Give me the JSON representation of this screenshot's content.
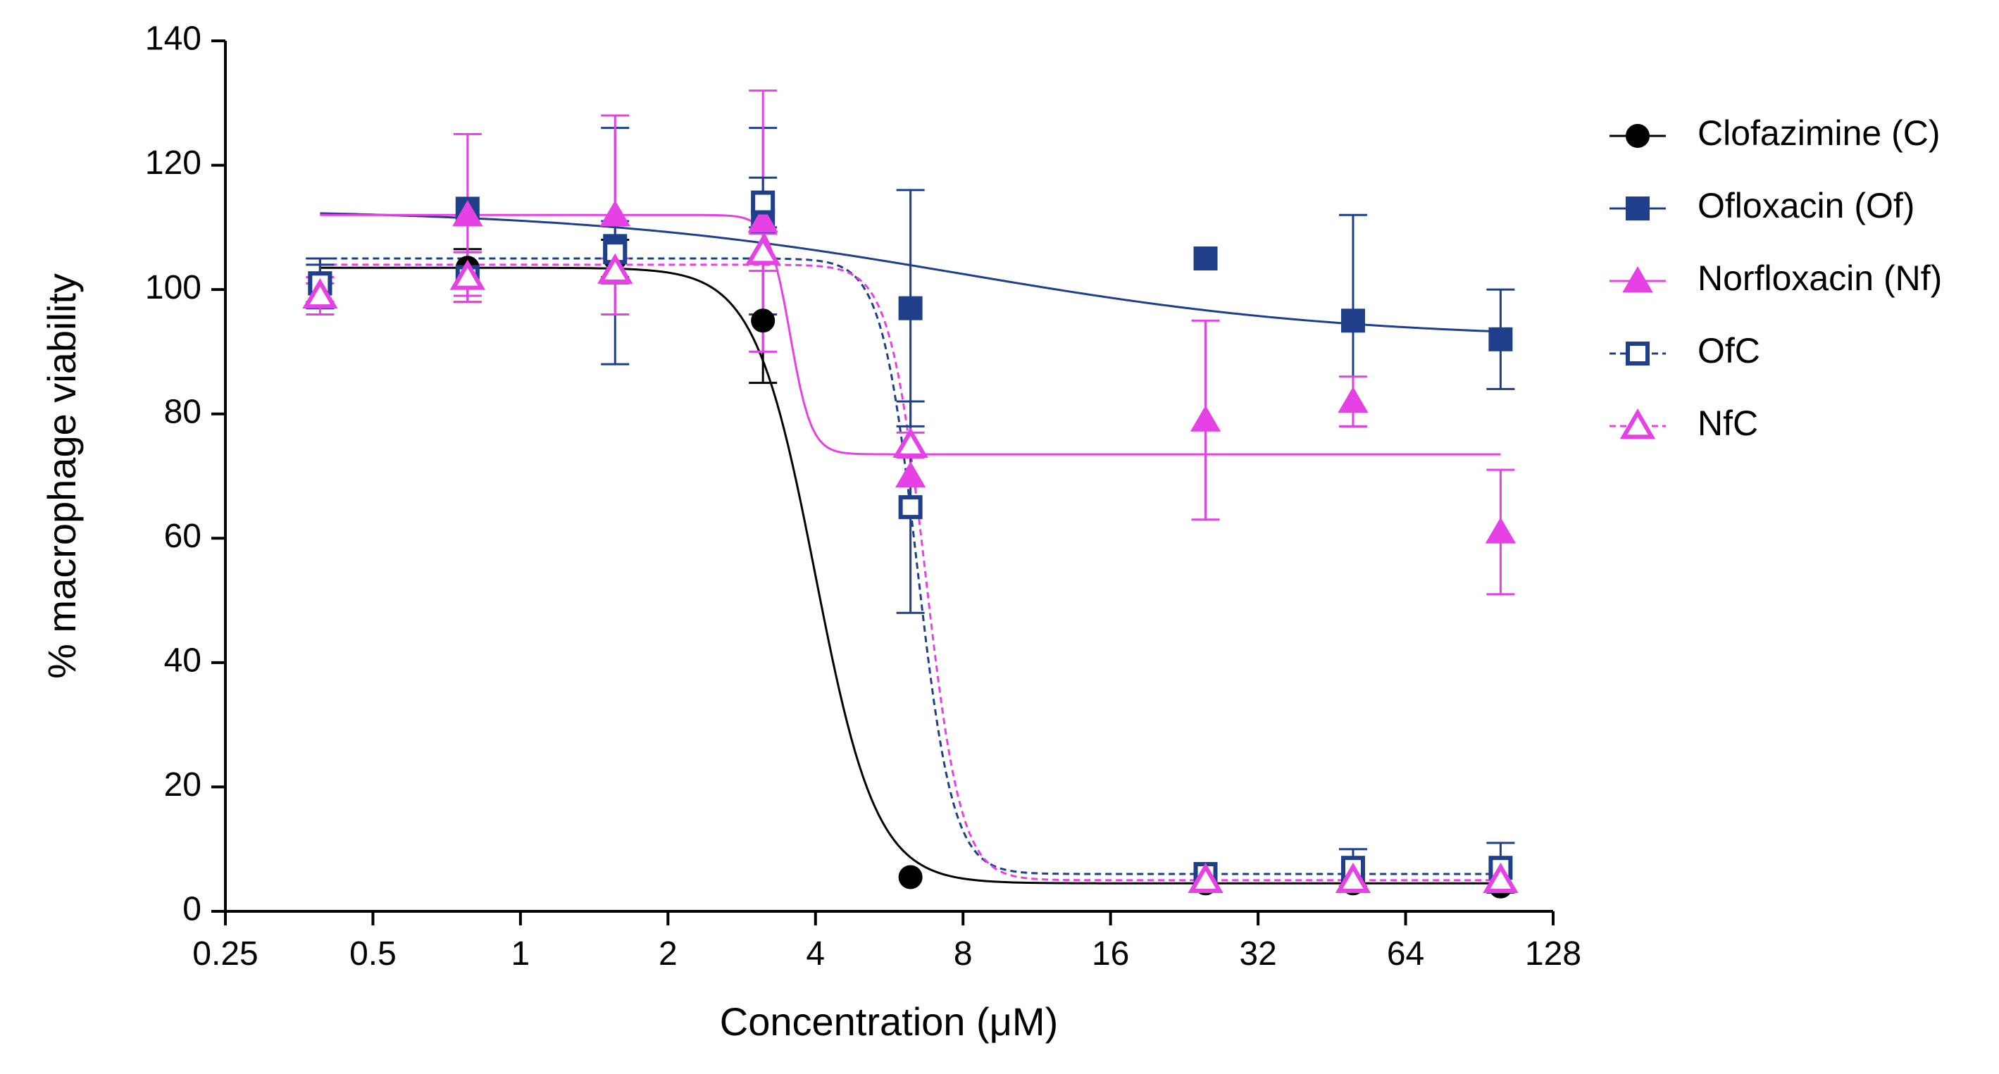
{
  "chart_data": {
    "type": "scatter",
    "xlabel": "Concentration (μM)",
    "ylabel": "% macrophage viability",
    "xscale": "log2",
    "xlim": [
      0.25,
      128
    ],
    "ylim": [
      0,
      140
    ],
    "x_ticks": [
      0.25,
      0.5,
      1,
      2,
      4,
      8,
      16,
      32,
      64,
      128
    ],
    "x_tick_labels": [
      "0.25",
      "0.5",
      "1",
      "2",
      "4",
      "8",
      "16",
      "32",
      "64",
      "128"
    ],
    "y_ticks": [
      0,
      20,
      40,
      60,
      80,
      100,
      120,
      140
    ],
    "y_tick_labels": [
      "0",
      "20",
      "40",
      "60",
      "80",
      "100",
      "120",
      "140"
    ],
    "grid": false,
    "legend_position": "right",
    "series": [
      {
        "name": "Clofazimine (C)",
        "color": "#000000",
        "marker": "circle",
        "filled": true,
        "line_style": "solid",
        "x": [
          0.39,
          0.78,
          1.56,
          3.125,
          6.25,
          25,
          50,
          100
        ],
        "y": [
          101,
          103.5,
          105,
          95,
          5.5,
          4.5,
          4.5,
          4
        ],
        "err": [
          4,
          3,
          3,
          10,
          0,
          0,
          0,
          0
        ],
        "fit": {
          "top": 103.5,
          "bottom": 4.5,
          "ec50": 4.0,
          "hill": 7
        }
      },
      {
        "name": "Ofloxacin (Of)",
        "color": "#1f3f8a",
        "marker": "square",
        "filled": true,
        "line_style": "solid",
        "x": [
          0.39,
          0.78,
          1.56,
          3.125,
          6.25,
          25,
          50,
          100
        ],
        "y": [
          101,
          113,
          107,
          111,
          97,
          105,
          95,
          92
        ],
        "err": [
          3,
          0,
          19,
          15,
          19,
          0,
          17,
          8
        ],
        "fit": {
          "top": 113,
          "bottom": 92,
          "ec50": 8,
          "hill": 1.1
        }
      },
      {
        "name": "Norfloxacin (Nf)",
        "color": "#e541e5",
        "marker": "triangle",
        "filled": true,
        "line_style": "solid",
        "x": [
          0.39,
          0.78,
          1.56,
          3.125,
          6.25,
          25,
          50,
          100
        ],
        "y": [
          99,
          112,
          112,
          111,
          70,
          79,
          82,
          61
        ],
        "err": [
          2,
          13,
          16,
          21,
          0,
          16,
          4,
          10
        ],
        "fit": {
          "top": 112,
          "bottom": 73.5,
          "ec50": 3.55,
          "hill": 20
        }
      },
      {
        "name": "OfC",
        "color": "#1f3f8a",
        "marker": "square",
        "filled": false,
        "line_style": "dashed",
        "x": [
          0.39,
          0.78,
          1.56,
          3.125,
          6.25,
          25,
          50,
          100
        ],
        "y": [
          101,
          102,
          106,
          114,
          65,
          6,
          7,
          7
        ],
        "err": [
          4,
          4,
          5,
          4,
          17,
          0,
          3,
          4
        ],
        "fit": {
          "top": 105,
          "bottom": 6,
          "ec50": 6.45,
          "hill": 12
        }
      },
      {
        "name": "NfC",
        "color": "#e541e5",
        "marker": "triangle",
        "filled": false,
        "line_style": "dashed",
        "x": [
          0.39,
          0.78,
          1.56,
          3.125,
          6.25,
          25,
          50,
          100
        ],
        "y": [
          99,
          102,
          103,
          106,
          75,
          5,
          5,
          5
        ],
        "err": [
          3,
          4,
          2,
          3,
          2,
          0,
          0,
          0
        ],
        "fit": {
          "top": 104,
          "bottom": 5,
          "ec50": 6.7,
          "hill": 12
        }
      }
    ]
  }
}
